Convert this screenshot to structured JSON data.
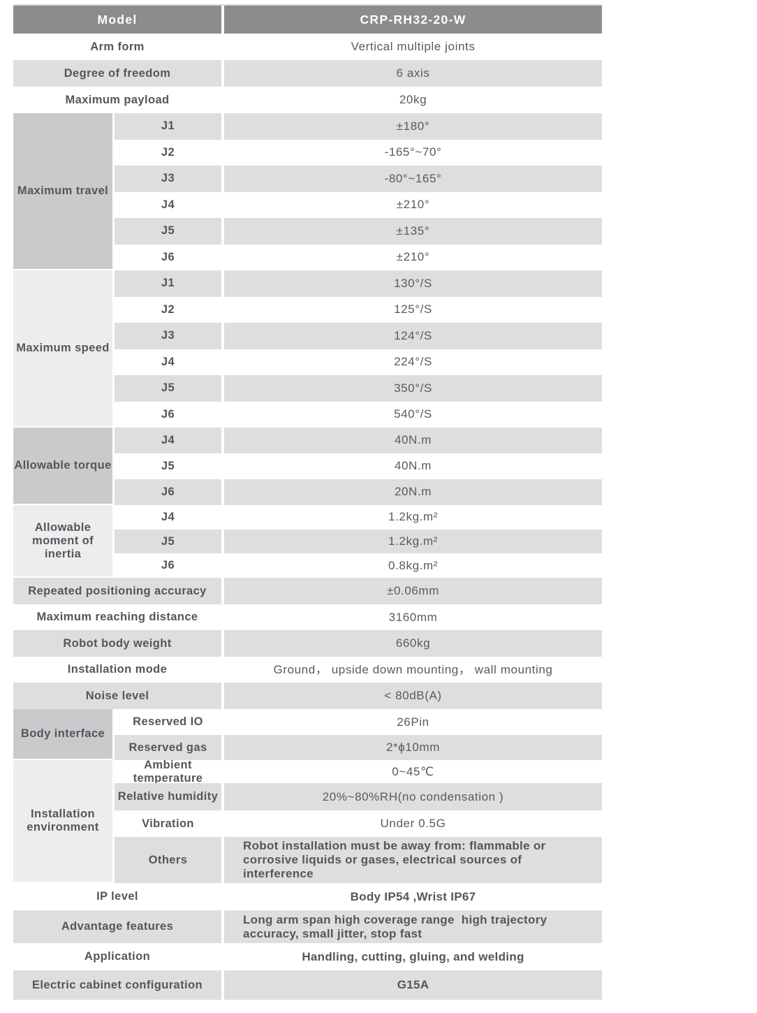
{
  "colors": {
    "header_bg": "#8b8c8c",
    "header_text": "#ffffff",
    "row_gray": "#dededf",
    "group_dark": "#c9cacc",
    "group_light": "#ecedee",
    "text": "#55565a"
  },
  "header": {
    "label": "Model",
    "value": "CRP-RH32-20-W"
  },
  "top_rows": [
    {
      "label": "Arm form",
      "value": "Vertical multiple joints"
    },
    {
      "label": "Degree of freedom",
      "value": "6 axis"
    },
    {
      "label": "Maximum payload",
      "value": "20kg"
    }
  ],
  "groups": {
    "travel": {
      "title": "Maximum travel",
      "rows": [
        {
          "key": "J1",
          "value": "±180°"
        },
        {
          "key": "J2",
          "value": "-165°~70°"
        },
        {
          "key": "J3",
          "value": "-80°~165°"
        },
        {
          "key": "J4",
          "value": "±210°"
        },
        {
          "key": "J5",
          "value": "±135°"
        },
        {
          "key": "J6",
          "value": "±210°"
        }
      ]
    },
    "speed": {
      "title": "Maximum speed",
      "rows": [
        {
          "key": "J1",
          "value": "130°/S"
        },
        {
          "key": "J2",
          "value": "125°/S"
        },
        {
          "key": "J3",
          "value": "124°/S"
        },
        {
          "key": "J4",
          "value": "224°/S"
        },
        {
          "key": "J5",
          "value": "350°/S"
        },
        {
          "key": "J6",
          "value": "540°/S"
        }
      ]
    },
    "torque": {
      "title": "Allowable torque",
      "rows": [
        {
          "key": "J4",
          "value": "40N.m"
        },
        {
          "key": "J5",
          "value": "40N.m"
        },
        {
          "key": "J6",
          "value": "20N.m"
        }
      ]
    },
    "inertia": {
      "title": "Allowable moment of inertia",
      "rows": [
        {
          "key": "J4",
          "value": "1.2kg.m²"
        },
        {
          "key": "J5",
          "value": "1.2kg.m²"
        },
        {
          "key": "J6",
          "value": "0.8kg.m²"
        }
      ]
    },
    "body_interface": {
      "title": "Body interface",
      "rows": [
        {
          "key": "Reserved IO",
          "value": "26Pin"
        },
        {
          "key": "Reserved gas",
          "value": "2*ϕ10mm"
        }
      ]
    },
    "environment": {
      "title": "Installation environment",
      "rows": [
        {
          "key": "Ambient temperature",
          "value": "0~45℃"
        },
        {
          "key": "Relative humidity",
          "value": "20%~80%RH(no condensation )"
        },
        {
          "key": "Vibration",
          "value": "Under 0.5G"
        },
        {
          "key": "Others",
          "value": "Robot installation must be away from: flammable or corrosive liquids or gases, electrical sources of interference"
        }
      ]
    }
  },
  "mid_rows": [
    {
      "label": "Repeated positioning accuracy",
      "value": "±0.06mm"
    },
    {
      "label": "Maximum reaching distance",
      "value": "3160mm"
    },
    {
      "label": "Robot body weight",
      "value": "660kg"
    },
    {
      "label": "Installation mode",
      "value": "Ground， upside down mounting， wall mounting"
    },
    {
      "label": "Noise level",
      "value": "< 80dB(A)"
    }
  ],
  "bottom_rows": [
    {
      "label": "IP level",
      "value": "Body IP54 ,Wrist IP67"
    },
    {
      "label": "Advantage features",
      "value": "Long arm span high coverage range  high trajectory accuracy, small jitter, stop fast"
    },
    {
      "label": "Application",
      "value": "Handling, cutting, gluing, and welding"
    },
    {
      "label": "Electric cabinet configuration",
      "value": "G15A"
    }
  ]
}
